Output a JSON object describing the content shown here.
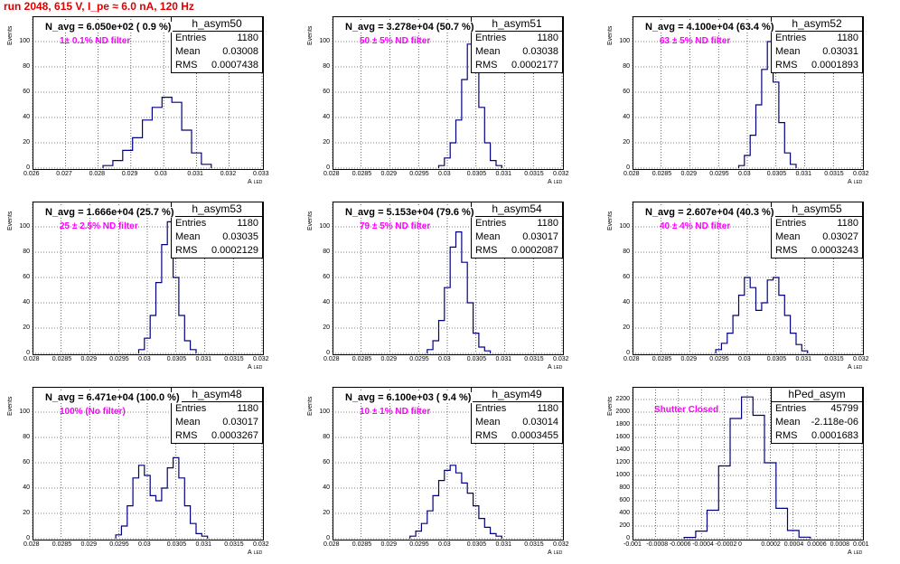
{
  "header": {
    "title": "run 2048,   615 V, I_pe ≈ 6.0 nA, 120 Hz"
  },
  "axis_labels": {
    "y": "Events",
    "x": "A",
    "x_sub": "LED"
  },
  "colors": {
    "histogram": "#000080",
    "grid": "#000000",
    "title": "#e00000",
    "filter_text": "#ff00ff"
  },
  "stat_keys": {
    "entries": "Entries",
    "mean": "Mean",
    "rms": "RMS"
  },
  "chart_data": [
    {
      "type": "histogram",
      "name": "h_asym50",
      "navg": "N_avg = 6.050e+02 ( 0.9 %)",
      "filter": "1± 0.1% ND filter",
      "stats": {
        "entries": "1180",
        "mean": "0.03008",
        "rms": "0.0007438"
      },
      "xlim": [
        0.026,
        0.033
      ],
      "ylim": [
        0,
        120
      ],
      "xticks": [
        0.026,
        0.027,
        0.028,
        0.029,
        0.03,
        0.031,
        0.032,
        0.033
      ],
      "xtick_labels": [
        "0.026",
        "0.027",
        "0.028",
        "0.029",
        "0.03",
        "0.031",
        "0.032",
        "0.033"
      ],
      "yticks": [
        0,
        20,
        40,
        60,
        80,
        100
      ],
      "grid": true,
      "x": [
        0.0283,
        0.0286,
        0.0289,
        0.0292,
        0.0295,
        0.0298,
        0.0301,
        0.0304,
        0.0307,
        0.031,
        0.0313
      ],
      "y": [
        2,
        6,
        14,
        24,
        38,
        48,
        56,
        52,
        30,
        12,
        3
      ]
    },
    {
      "type": "histogram",
      "name": "h_asym51",
      "navg": "N_avg = 3.278e+04 (50.7 %)",
      "filter": "50 ± 5% ND filter",
      "stats": {
        "entries": "1180",
        "mean": "0.03038",
        "rms": "0.0002177"
      },
      "xlim": [
        0.028,
        0.032
      ],
      "ylim": [
        0,
        120
      ],
      "xticks": [
        0.028,
        0.0285,
        0.029,
        0.0295,
        0.03,
        0.0305,
        0.031,
        0.0315,
        0.032
      ],
      "xtick_labels": [
        "0.028",
        "0.0285",
        "0.029",
        "0.0295",
        "0.03",
        "0.0305",
        "0.031",
        "0.0315",
        "0.032"
      ],
      "yticks": [
        0,
        20,
        40,
        60,
        80,
        100
      ],
      "grid": true,
      "x": [
        0.0299,
        0.03,
        0.0301,
        0.0302,
        0.0303,
        0.0304,
        0.0305,
        0.0306,
        0.0307,
        0.0308,
        0.0309
      ],
      "y": [
        2,
        8,
        20,
        38,
        70,
        98,
        82,
        48,
        20,
        6,
        2
      ]
    },
    {
      "type": "histogram",
      "name": "h_asym52",
      "navg": "N_avg = 4.100e+04 (63.4 %)",
      "filter": "63 ± 5% ND filter",
      "stats": {
        "entries": "1180",
        "mean": "0.03031",
        "rms": "0.0001893"
      },
      "xlim": [
        0.028,
        0.032
      ],
      "ylim": [
        0,
        120
      ],
      "xticks": [
        0.028,
        0.0285,
        0.029,
        0.0295,
        0.03,
        0.0305,
        0.031,
        0.0315,
        0.032
      ],
      "xtick_labels": [
        "0.028",
        "0.0285",
        "0.029",
        "0.0295",
        "0.03",
        "0.0305",
        "0.031",
        "0.0315",
        "0.032"
      ],
      "yticks": [
        0,
        20,
        40,
        60,
        80,
        100
      ],
      "grid": true,
      "x": [
        0.0299,
        0.03,
        0.0301,
        0.0302,
        0.0303,
        0.0304,
        0.0305,
        0.0306,
        0.0307,
        0.0308
      ],
      "y": [
        2,
        10,
        26,
        50,
        78,
        100,
        68,
        36,
        12,
        3
      ]
    },
    {
      "type": "histogram",
      "name": "h_asym53",
      "navg": "N_avg = 1.666e+04 (25.7 %)",
      "filter": "25 ± 2.5% ND filter",
      "stats": {
        "entries": "1180",
        "mean": "0.03035",
        "rms": "0.0002129"
      },
      "xlim": [
        0.028,
        0.032
      ],
      "ylim": [
        0,
        120
      ],
      "xticks": [
        0.028,
        0.0285,
        0.029,
        0.0295,
        0.03,
        0.0305,
        0.031,
        0.0315,
        0.032
      ],
      "xtick_labels": [
        "0.028",
        "0.0285",
        "0.029",
        "0.0295",
        "0.03",
        "0.0305",
        "0.031",
        "0.0315",
        "0.032"
      ],
      "yticks": [
        0,
        20,
        40,
        60,
        80,
        100
      ],
      "grid": true,
      "x": [
        0.0299,
        0.03,
        0.0301,
        0.0302,
        0.0303,
        0.0304,
        0.0305,
        0.0306,
        0.0307,
        0.0308
      ],
      "y": [
        3,
        12,
        30,
        56,
        86,
        104,
        60,
        30,
        10,
        3
      ]
    },
    {
      "type": "histogram",
      "name": "h_asym54",
      "navg": "N_avg = 5.153e+04 (79.6 %)",
      "filter": "79 ± 5% ND filter",
      "stats": {
        "entries": "1180",
        "mean": "0.03017",
        "rms": "0.0002087"
      },
      "xlim": [
        0.028,
        0.032
      ],
      "ylim": [
        0,
        120
      ],
      "xticks": [
        0.028,
        0.0285,
        0.029,
        0.0295,
        0.03,
        0.0305,
        0.031,
        0.0315,
        0.032
      ],
      "xtick_labels": [
        "0.028",
        "0.0285",
        "0.029",
        "0.0295",
        "0.03",
        "0.0305",
        "0.031",
        "0.0315",
        "0.032"
      ],
      "yticks": [
        0,
        20,
        40,
        60,
        80,
        100
      ],
      "grid": true,
      "x": [
        0.0297,
        0.0298,
        0.0299,
        0.03,
        0.0301,
        0.0302,
        0.0303,
        0.0304,
        0.0305,
        0.0306,
        0.0307
      ],
      "y": [
        3,
        10,
        26,
        52,
        84,
        96,
        72,
        40,
        16,
        5,
        2
      ]
    },
    {
      "type": "histogram",
      "name": "h_asym55",
      "navg": "N_avg = 2.607e+04 (40.3 %)",
      "filter": "40 ± 4% ND filter",
      "stats": {
        "entries": "1180",
        "mean": "0.03027",
        "rms": "0.0003243"
      },
      "xlim": [
        0.028,
        0.032
      ],
      "ylim": [
        0,
        120
      ],
      "xticks": [
        0.028,
        0.0285,
        0.029,
        0.0295,
        0.03,
        0.0305,
        0.031,
        0.0315,
        0.032
      ],
      "xtick_labels": [
        "0.028",
        "0.0285",
        "0.029",
        "0.0295",
        "0.03",
        "0.0305",
        "0.031",
        "0.0315",
        "0.032"
      ],
      "yticks": [
        0,
        20,
        40,
        60,
        80,
        100
      ],
      "grid": true,
      "x": [
        0.0295,
        0.0296,
        0.0297,
        0.0298,
        0.0299,
        0.03,
        0.0301,
        0.0302,
        0.0303,
        0.0304,
        0.0305,
        0.0306,
        0.0307,
        0.0308,
        0.0309,
        0.031
      ],
      "y": [
        3,
        8,
        16,
        30,
        46,
        60,
        52,
        34,
        40,
        58,
        60,
        46,
        30,
        16,
        7,
        2
      ]
    },
    {
      "type": "histogram",
      "name": "h_asym48",
      "navg": "N_avg = 6.471e+04 (100.0 %)",
      "filter": "100% (No filter)",
      "stats": {
        "entries": "1180",
        "mean": "0.03017",
        "rms": "0.0003267"
      },
      "xlim": [
        0.028,
        0.032
      ],
      "ylim": [
        0,
        120
      ],
      "xticks": [
        0.028,
        0.0285,
        0.029,
        0.0295,
        0.03,
        0.0305,
        0.031,
        0.0315,
        0.032
      ],
      "xtick_labels": [
        "0.028",
        "0.0285",
        "0.029",
        "0.0295",
        "0.03",
        "0.0305",
        "0.031",
        "0.0315",
        "0.032"
      ],
      "yticks": [
        0,
        20,
        40,
        60,
        80,
        100
      ],
      "grid": true,
      "x": [
        0.0295,
        0.0296,
        0.0297,
        0.0298,
        0.0299,
        0.03,
        0.0301,
        0.0302,
        0.0303,
        0.0304,
        0.0305,
        0.0306,
        0.0307,
        0.0308,
        0.0309,
        0.031
      ],
      "y": [
        3,
        10,
        26,
        48,
        58,
        50,
        34,
        30,
        40,
        56,
        64,
        48,
        26,
        12,
        4,
        2
      ]
    },
    {
      "type": "histogram",
      "name": "h_asym49",
      "navg": "N_avg = 6.100e+03 ( 9.4 %)",
      "filter": "10 ± 1% ND filter",
      "stats": {
        "entries": "1180",
        "mean": "0.03014",
        "rms": "0.0003455"
      },
      "xlim": [
        0.028,
        0.032
      ],
      "ylim": [
        0,
        120
      ],
      "xticks": [
        0.028,
        0.0285,
        0.029,
        0.0295,
        0.03,
        0.0305,
        0.031,
        0.0315,
        0.032
      ],
      "xtick_labels": [
        "0.028",
        "0.0285",
        "0.029",
        "0.0295",
        "0.03",
        "0.0305",
        "0.031",
        "0.0315",
        "0.032"
      ],
      "yticks": [
        0,
        20,
        40,
        60,
        80,
        100
      ],
      "grid": true,
      "x": [
        0.0294,
        0.0295,
        0.0296,
        0.0297,
        0.0298,
        0.0299,
        0.03,
        0.0301,
        0.0302,
        0.0303,
        0.0304,
        0.0305,
        0.0306,
        0.0307,
        0.0308,
        0.0309
      ],
      "y": [
        2,
        6,
        12,
        22,
        34,
        46,
        54,
        58,
        52,
        44,
        36,
        26,
        16,
        9,
        4,
        2
      ]
    },
    {
      "type": "histogram",
      "name": "hPed_asym",
      "navg": "",
      "filter": "Shutter Closed",
      "stats": {
        "entries": "45799",
        "mean": "-2.118e-06",
        "rms": "0.0001683"
      },
      "xlim": [
        -0.001,
        0.001
      ],
      "ylim": [
        0,
        2400
      ],
      "xticks": [
        -0.001,
        -0.0008,
        -0.0006,
        -0.0004,
        -0.0002,
        0,
        0.0002,
        0.0004,
        0.0006,
        0.0008,
        0.001
      ],
      "xtick_labels": [
        "-0.001",
        "-0.0008",
        "-0.0006",
        "-0.0004",
        "-0.0002",
        "0",
        "0.0002",
        "0.0004",
        "0.0006",
        "0.0008",
        "0.001"
      ],
      "yticks": [
        0,
        200,
        400,
        600,
        800,
        1000,
        1200,
        1400,
        1600,
        1800,
        2000,
        2200
      ],
      "grid": true,
      "x": [
        -0.0005,
        -0.0004,
        -0.0003,
        -0.0002,
        -0.0001,
        0,
        0.0001,
        0.0002,
        0.0003,
        0.0004,
        0.0005
      ],
      "y": [
        20,
        120,
        450,
        1150,
        1900,
        2240,
        1950,
        1200,
        480,
        130,
        25
      ]
    }
  ]
}
